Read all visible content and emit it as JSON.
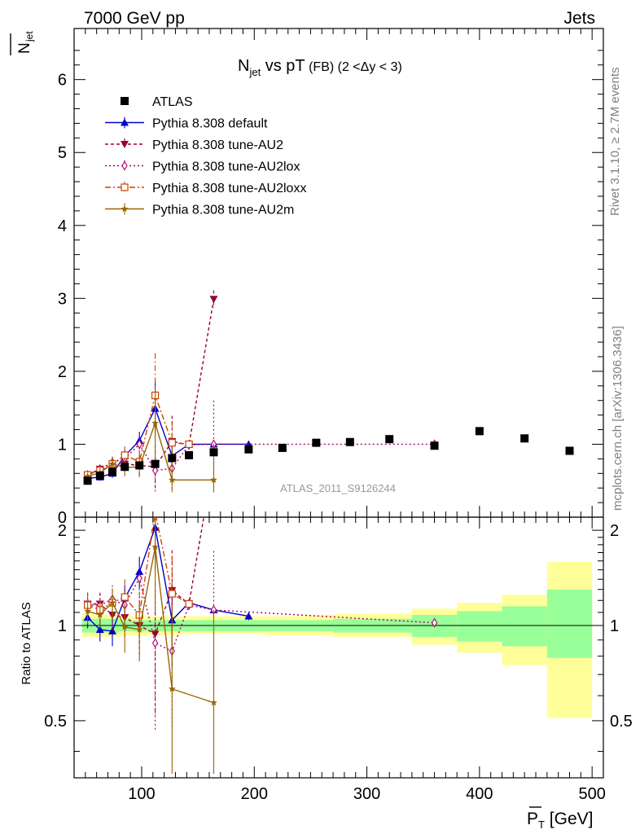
{
  "header": {
    "left": "7000 GeV pp",
    "right": "Jets"
  },
  "side_labels": {
    "rivet": "Rivet 3.1.10, ≥ 2.7M events",
    "mcplots": "mcplots.cern.ch [arXiv:1306.3436]"
  },
  "chart_data": [
    {
      "type": "scatter",
      "title": "N_jet vs pT (FB) (2 < Δy < 3)",
      "title_main": "N",
      "title_sub": "jet",
      "title_mid": " vs pT",
      "title_small": " (FB) (2 <Δy < 3)",
      "ylabel_main": "N",
      "ylabel_sub": "jet",
      "watermark": "ATLAS_2011_S9126244",
      "xlim": [
        40,
        510
      ],
      "ylim": [
        0,
        6.7
      ],
      "yticks": [
        0,
        1,
        2,
        3,
        4,
        5,
        6
      ],
      "legend_position": "top-left",
      "series": [
        {
          "name": "ATLAS",
          "style": "data",
          "color": "#000000",
          "marker": "square",
          "points": [
            [
              52,
              0.5
            ],
            [
              63,
              0.57
            ],
            [
              74,
              0.62
            ],
            [
              85,
              0.69
            ],
            [
              98,
              0.71
            ],
            [
              112,
              0.73
            ],
            [
              127,
              0.81
            ],
            [
              142,
              0.85
            ],
            [
              164,
              0.89
            ],
            [
              195,
              0.93
            ],
            [
              225,
              0.95
            ],
            [
              255,
              1.02
            ],
            [
              285,
              1.03
            ],
            [
              320,
              1.07
            ],
            [
              360,
              0.98
            ],
            [
              400,
              1.18
            ],
            [
              440,
              1.08
            ],
            [
              480,
              0.91
            ]
          ]
        },
        {
          "name": "Pythia 8.308 default",
          "color": "#0000cc",
          "dash": "",
          "marker": "triangle-up",
          "points": [
            [
              52,
              0.53,
              0.05
            ],
            [
              63,
              0.55,
              0.05
            ],
            [
              74,
              0.6,
              0.06
            ],
            [
              85,
              0.84,
              0.08
            ],
            [
              98,
              1.05,
              0.12
            ],
            [
              112,
              1.49,
              0.38
            ],
            [
              127,
              0.84,
              0.25
            ],
            [
              142,
              1.0,
              0.02
            ],
            [
              164,
              1.0,
              0.02
            ],
            [
              195,
              1.0,
              0.02
            ]
          ]
        },
        {
          "name": "Pythia 8.308 tune-AU2",
          "color": "#990033",
          "dash": "4,3",
          "marker": "triangle-down",
          "points": [
            [
              52,
              0.58,
              0.05
            ],
            [
              63,
              0.66,
              0.06
            ],
            [
              74,
              0.67,
              0.08
            ],
            [
              85,
              0.73,
              0.1
            ],
            [
              98,
              0.71,
              0.14
            ],
            [
              112,
              0.69,
              0.3
            ],
            [
              127,
              1.04,
              0.35
            ],
            [
              142,
              0.99,
              0.03
            ],
            [
              164,
              2.99,
              0.12
            ]
          ]
        },
        {
          "name": "Pythia 8.308 tune-AU2lox",
          "color": "#aa0066",
          "dash": "2,3",
          "marker": "diamond",
          "points": [
            [
              52,
              0.58,
              0.05
            ],
            [
              63,
              0.66,
              0.06
            ],
            [
              74,
              0.75,
              0.08
            ],
            [
              85,
              0.8,
              0.1
            ],
            [
              98,
              1.0,
              0.14
            ],
            [
              112,
              0.64,
              0.35
            ],
            [
              127,
              0.67,
              0.3
            ],
            [
              142,
              0.99,
              0.03
            ],
            [
              164,
              1.0,
              0.6
            ],
            [
              360,
              1.0,
              0.01
            ]
          ]
        },
        {
          "name": "Pythia 8.308 tune-AU2loxx",
          "color": "#cc4400",
          "dash": "7,3,2,3",
          "marker": "square-open",
          "points": [
            [
              52,
              0.58,
              0.05
            ],
            [
              63,
              0.64,
              0.06
            ],
            [
              74,
              0.73,
              0.08
            ],
            [
              85,
              0.85,
              0.12
            ],
            [
              98,
              0.76,
              0.14
            ],
            [
              112,
              1.67,
              0.58
            ],
            [
              127,
              1.02,
              0.3
            ],
            [
              142,
              1.0,
              0.02
            ]
          ]
        },
        {
          "name": "Pythia 8.308 tune-AU2m",
          "color": "#996600",
          "dash": "",
          "marker": "star",
          "points": [
            [
              52,
              0.56,
              0.05
            ],
            [
              63,
              0.61,
              0.06
            ],
            [
              74,
              0.73,
              0.08
            ],
            [
              85,
              0.68,
              0.12
            ],
            [
              98,
              0.69,
              0.14
            ],
            [
              112,
              1.29,
              0.48
            ],
            [
              127,
              0.51,
              0.4
            ],
            [
              164,
              0.51,
              0.5
            ]
          ]
        }
      ]
    },
    {
      "type": "band",
      "ylabel": "Ratio to ATLAS",
      "xlabel_main": "P",
      "xlabel_sub": "T",
      "xlabel_unit": " [GeV]",
      "xlim": [
        40,
        510
      ],
      "ylim": [
        0.33,
        2.2
      ],
      "yticks": [
        0.5,
        1,
        2
      ],
      "xticks": [
        100,
        200,
        300,
        400,
        500
      ],
      "bands": [
        {
          "x0": 47,
          "x1": 58,
          "yellow": [
            0.92,
            1.09
          ],
          "green": [
            0.95,
            1.05
          ]
        },
        {
          "x0": 58,
          "x1": 69,
          "yellow": [
            0.92,
            1.08
          ],
          "green": [
            0.95,
            1.05
          ]
        },
        {
          "x0": 69,
          "x1": 80,
          "yellow": [
            0.92,
            1.08
          ],
          "green": [
            0.95,
            1.05
          ]
        },
        {
          "x0": 80,
          "x1": 92,
          "yellow": [
            0.93,
            1.07
          ],
          "green": [
            0.96,
            1.04
          ]
        },
        {
          "x0": 92,
          "x1": 104,
          "yellow": [
            0.93,
            1.07
          ],
          "green": [
            0.96,
            1.04
          ]
        },
        {
          "x0": 104,
          "x1": 120,
          "yellow": [
            0.93,
            1.07
          ],
          "green": [
            0.96,
            1.04
          ]
        },
        {
          "x0": 120,
          "x1": 135,
          "yellow": [
            0.93,
            1.07
          ],
          "green": [
            0.96,
            1.04
          ]
        },
        {
          "x0": 135,
          "x1": 150,
          "yellow": [
            0.94,
            1.07
          ],
          "green": [
            0.96,
            1.04
          ]
        },
        {
          "x0": 150,
          "x1": 180,
          "yellow": [
            0.94,
            1.07
          ],
          "green": [
            0.96,
            1.04
          ]
        },
        {
          "x0": 180,
          "x1": 210,
          "yellow": [
            0.94,
            1.07
          ],
          "green": [
            0.96,
            1.04
          ]
        },
        {
          "x0": 210,
          "x1": 240,
          "yellow": [
            0.93,
            1.07
          ],
          "green": [
            0.96,
            1.04
          ]
        },
        {
          "x0": 240,
          "x1": 270,
          "yellow": [
            0.93,
            1.08
          ],
          "green": [
            0.96,
            1.04
          ]
        },
        {
          "x0": 270,
          "x1": 300,
          "yellow": [
            0.92,
            1.09
          ],
          "green": [
            0.95,
            1.05
          ]
        },
        {
          "x0": 300,
          "x1": 340,
          "yellow": [
            0.92,
            1.09
          ],
          "green": [
            0.95,
            1.05
          ]
        },
        {
          "x0": 340,
          "x1": 380,
          "yellow": [
            0.87,
            1.13
          ],
          "green": [
            0.92,
            1.08
          ]
        },
        {
          "x0": 380,
          "x1": 420,
          "yellow": [
            0.82,
            1.18
          ],
          "green": [
            0.89,
            1.11
          ]
        },
        {
          "x0": 420,
          "x1": 460,
          "yellow": [
            0.75,
            1.25
          ],
          "green": [
            0.86,
            1.15
          ]
        },
        {
          "x0": 460,
          "x1": 500,
          "yellow": [
            0.51,
            1.59
          ],
          "green": [
            0.79,
            1.3
          ]
        }
      ],
      "series": [
        {
          "name": "Pythia 8.308 default",
          "points": [
            [
              52,
              1.06,
              0.08
            ],
            [
              63,
              0.97,
              0.08
            ],
            [
              74,
              0.96,
              0.1
            ],
            [
              85,
              1.22,
              0.12
            ],
            [
              98,
              1.48,
              0.17
            ],
            [
              112,
              2.04,
              0.52
            ],
            [
              127,
              1.04,
              0.3
            ],
            [
              142,
              1.18,
              0.03
            ],
            [
              164,
              1.12,
              0.03
            ],
            [
              195,
              1.07,
              0.03
            ]
          ]
        },
        {
          "name": "Pythia 8.308 tune-AU2",
          "points": [
            [
              52,
              1.17,
              0.1
            ],
            [
              63,
              1.17,
              0.1
            ],
            [
              74,
              1.08,
              0.13
            ],
            [
              85,
              1.06,
              0.14
            ],
            [
              98,
              1.0,
              0.2
            ],
            [
              112,
              0.94,
              0.42
            ],
            [
              127,
              1.29,
              0.44
            ],
            [
              142,
              1.17,
              0.04
            ],
            [
              164,
              3.36,
              0.14
            ]
          ]
        },
        {
          "name": "Pythia 8.308 tune-AU2lox",
          "points": [
            [
              52,
              1.16,
              0.1
            ],
            [
              63,
              1.16,
              0.1
            ],
            [
              74,
              1.21,
              0.13
            ],
            [
              85,
              1.16,
              0.14
            ],
            [
              98,
              1.41,
              0.2
            ],
            [
              112,
              0.88,
              0.42
            ],
            [
              127,
              0.83,
              0.35
            ],
            [
              142,
              1.16,
              0.04
            ],
            [
              164,
              1.12,
              0.6
            ],
            [
              360,
              1.02,
              0.01
            ]
          ]
        },
        {
          "name": "Pythia 8.308 tune-AU2loxx",
          "points": [
            [
              52,
              1.16,
              0.1
            ],
            [
              63,
              1.12,
              0.1
            ],
            [
              74,
              1.18,
              0.13
            ],
            [
              85,
              1.23,
              0.17
            ],
            [
              98,
              1.08,
              0.2
            ],
            [
              112,
              2.28,
              0.8
            ],
            [
              127,
              1.26,
              0.4
            ],
            [
              142,
              1.17,
              0.03
            ]
          ]
        },
        {
          "name": "Pythia 8.308 tune-AU2m",
          "points": [
            [
              52,
              1.11,
              0.1
            ],
            [
              63,
              1.08,
              0.1
            ],
            [
              74,
              1.18,
              0.13
            ],
            [
              85,
              0.99,
              0.17
            ],
            [
              98,
              0.97,
              0.2
            ],
            [
              112,
              1.77,
              0.65
            ],
            [
              127,
              0.63,
              0.5
            ],
            [
              164,
              0.57,
              0.55
            ]
          ]
        }
      ]
    }
  ]
}
